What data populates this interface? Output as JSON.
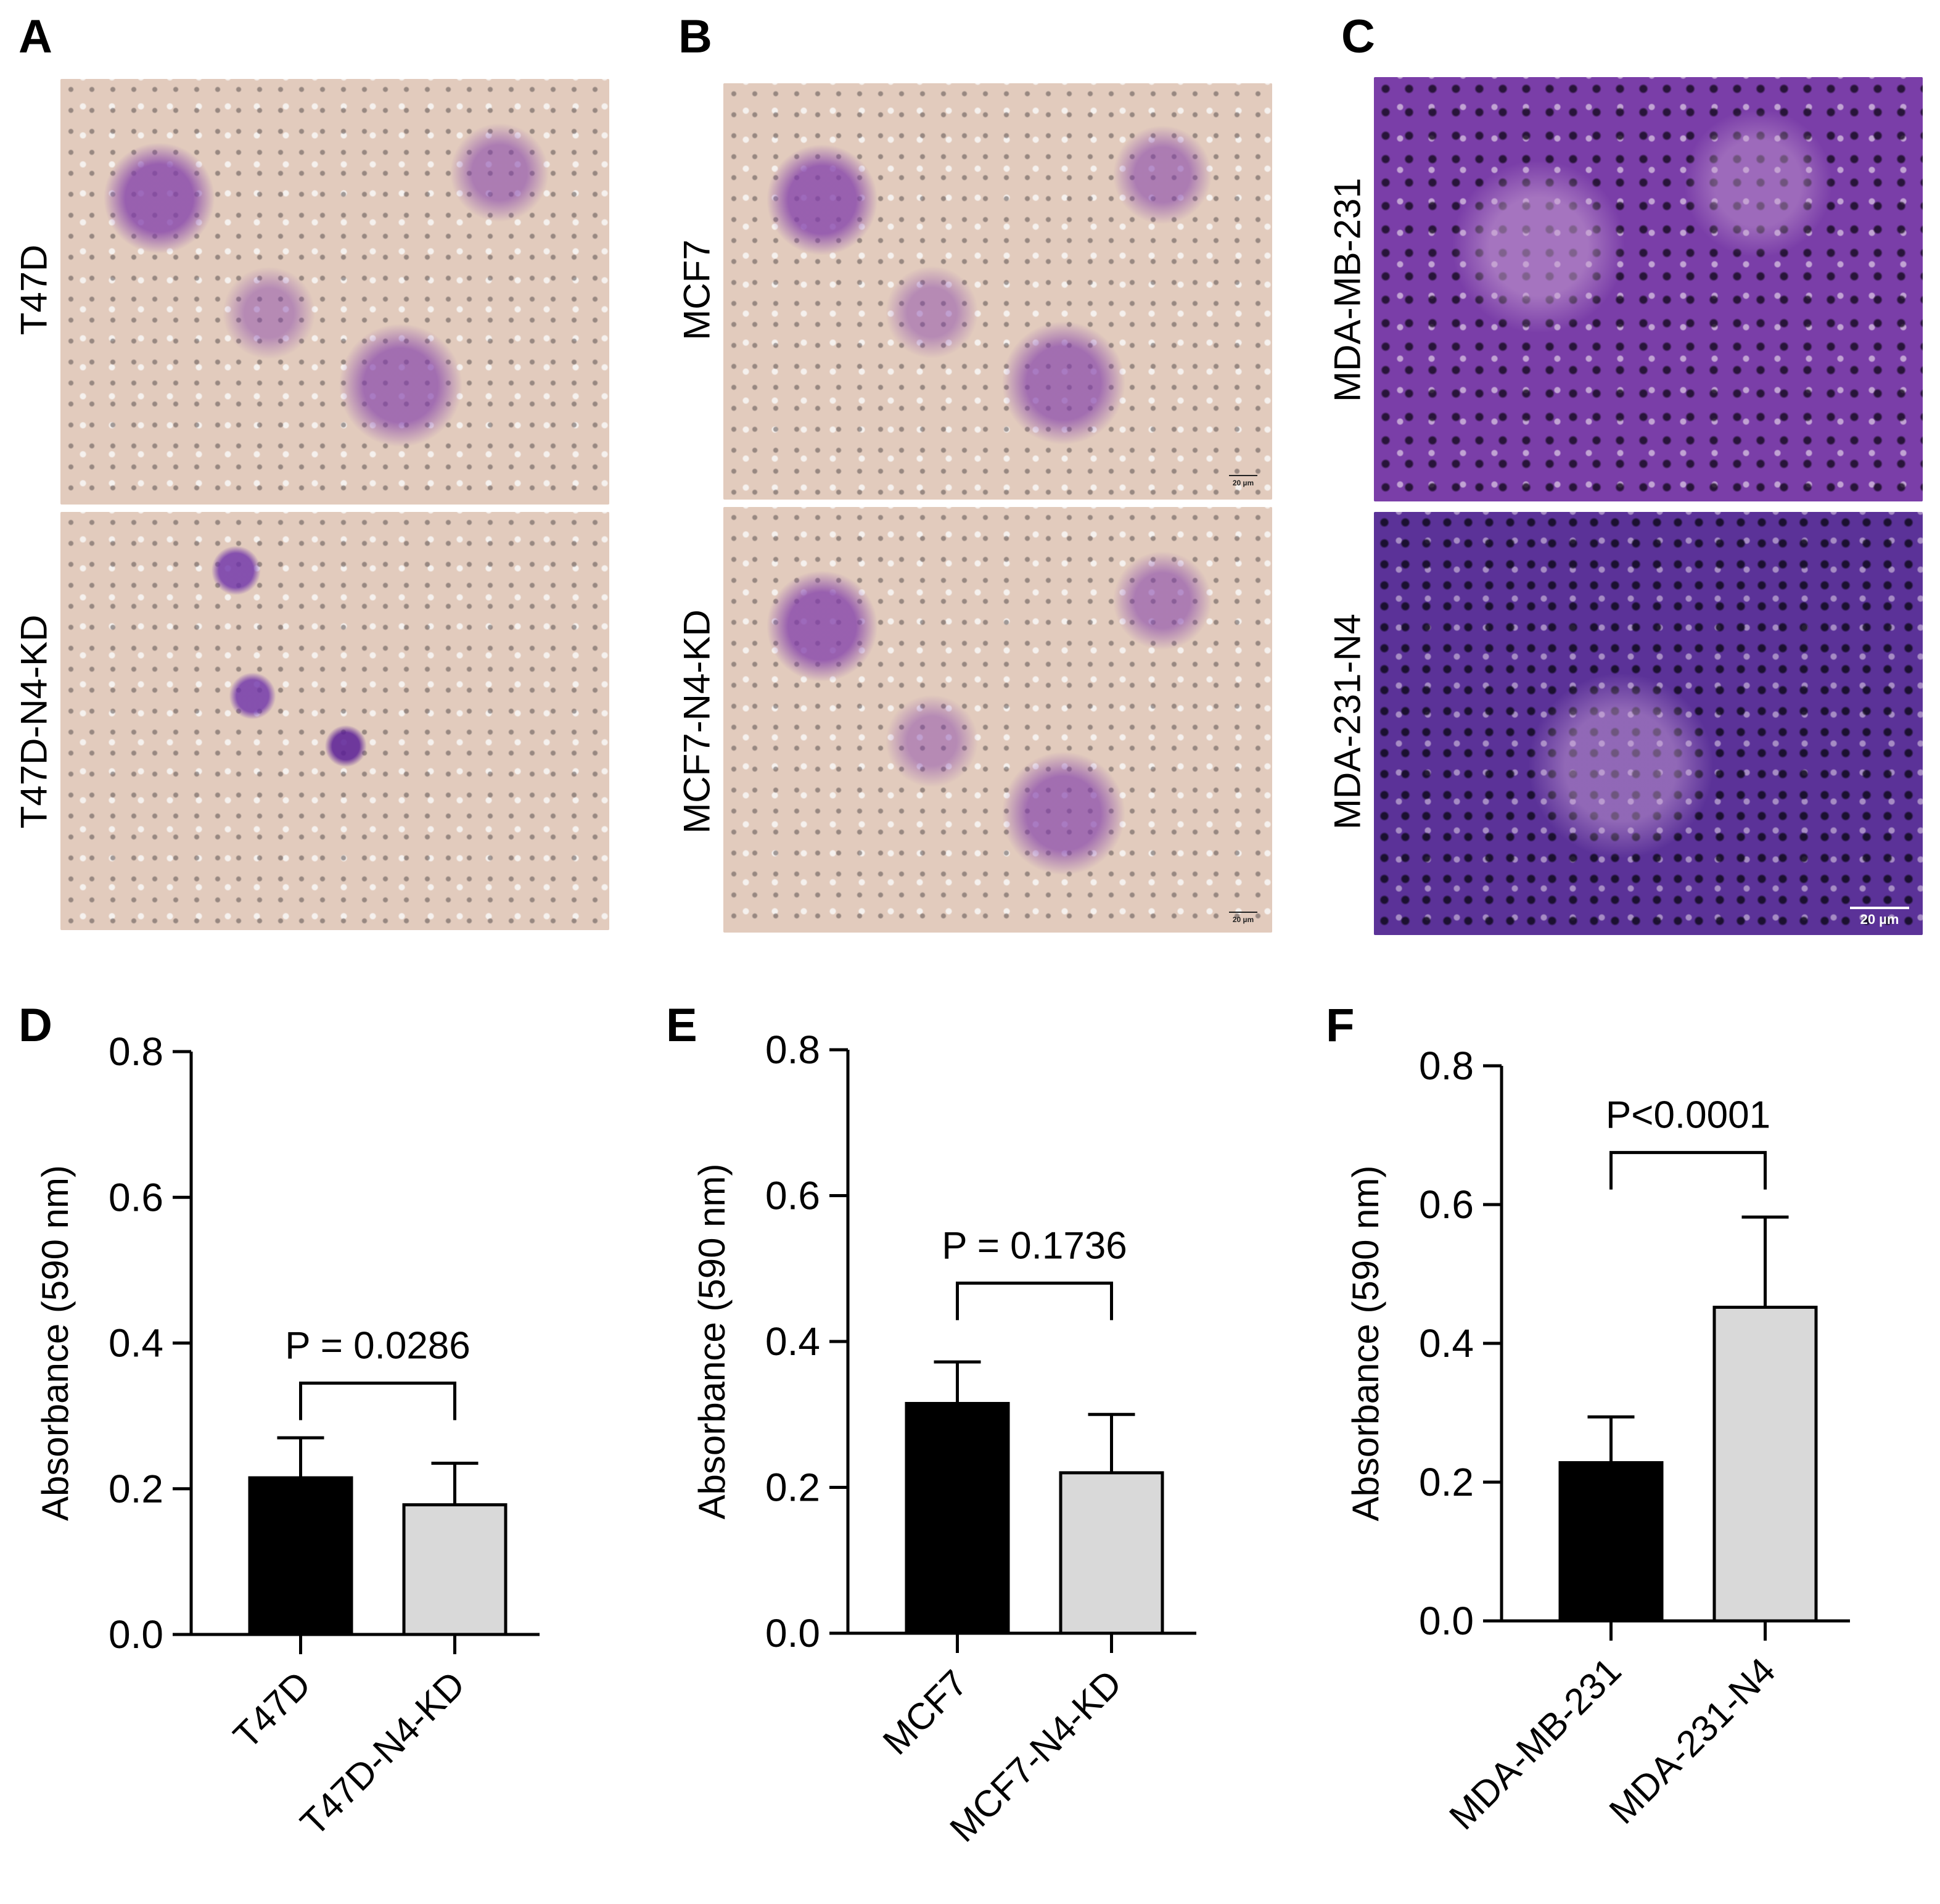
{
  "panels": {
    "A": {
      "letter": "A",
      "top_label": "T47D",
      "bottom_label": "T47D-N4-KD"
    },
    "B": {
      "letter": "B",
      "top_label": "MCF7",
      "bottom_label": "MCF7-N4-KD",
      "scale_text": "20 µm"
    },
    "C": {
      "letter": "C",
      "top_label": "MDA-MB-231",
      "bottom_label": "MDA-231-N4",
      "scale_text": "20 µm"
    },
    "D": {
      "letter": "D"
    },
    "E": {
      "letter": "E"
    },
    "F": {
      "letter": "F"
    }
  },
  "chart_data": [
    {
      "panel": "D",
      "type": "bar",
      "categories": [
        "T47D",
        "T47D-N4-KD"
      ],
      "values": [
        0.215,
        0.178
      ],
      "errors": [
        0.055,
        0.057
      ],
      "bar_colors": [
        "#000000",
        "#d9d9d9"
      ],
      "ylabel": "Absorbance (590 nm)",
      "ylim": [
        0,
        0.8
      ],
      "yticks": [
        "0.0",
        "0.2",
        "0.4",
        "0.6",
        "0.8"
      ],
      "annotation": "P = 0.0286",
      "bracket_y": 0.345
    },
    {
      "panel": "E",
      "type": "bar",
      "categories": [
        "MCF7",
        "MCF7-N4-KD"
      ],
      "values": [
        0.315,
        0.22
      ],
      "errors": [
        0.057,
        0.08
      ],
      "bar_colors": [
        "#000000",
        "#d9d9d9"
      ],
      "ylabel": "Absorbance (590 nm)",
      "ylim": [
        0,
        0.8
      ],
      "yticks": [
        "0.0",
        "0.2",
        "0.4",
        "0.6",
        "0.8"
      ],
      "annotation": "P = 0.1736",
      "bracket_y": 0.48
    },
    {
      "panel": "F",
      "type": "bar",
      "categories": [
        "MDA-MB-231",
        "MDA-231-N4"
      ],
      "values": [
        0.228,
        0.452
      ],
      "errors": [
        0.066,
        0.13
      ],
      "bar_colors": [
        "#000000",
        "#d9d9d9"
      ],
      "ylabel": "Absorbance (590 nm)",
      "ylim": [
        0,
        0.8
      ],
      "yticks": [
        "0.0",
        "0.2",
        "0.4",
        "0.6",
        "0.8"
      ],
      "annotation": "P<0.0001",
      "bracket_y": 0.675
    }
  ]
}
